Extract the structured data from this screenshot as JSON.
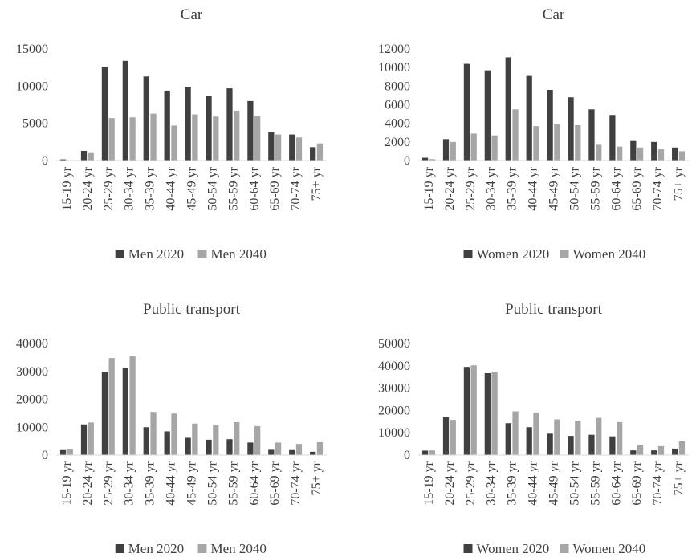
{
  "colors": {
    "series_2020": "#404040",
    "series_2040": "#a6a6a6",
    "axis": "#d9d9d9",
    "text": "#404040"
  },
  "chart_data": [
    {
      "type": "bar",
      "title": "Car",
      "categories": [
        "15-19 yr",
        "20-24 yr",
        "25-29 yr",
        "30-34 yr",
        "35-39 yr",
        "40-44 yr",
        "45-49 yr",
        "50-54 yr",
        "55-59 yr",
        "60-64 yr",
        "65-69 yr",
        "70-74 yr",
        "75+ yr"
      ],
      "series": [
        {
          "name": "Men 2020",
          "values": [
            150,
            1300,
            12600,
            13400,
            11300,
            9400,
            9900,
            8700,
            9700,
            8000,
            3800,
            3500,
            1800
          ]
        },
        {
          "name": "Men 2040",
          "values": [
            50,
            1000,
            5700,
            5800,
            6300,
            4700,
            6200,
            5900,
            6700,
            6000,
            3500,
            3100,
            2300
          ]
        }
      ],
      "ylim": [
        0,
        15000
      ],
      "yticks": [
        "0",
        "5000",
        "10000",
        "15000"
      ],
      "legend": "bottom"
    },
    {
      "type": "bar",
      "title": "Car",
      "categories": [
        "15-19 yr",
        "20-24 yr",
        "25-29 yr",
        "30-34 yr",
        "35-39 yr",
        "40-44 yr",
        "45-49 yr",
        "50-54 yr",
        "55-59 yr",
        "60-64 yr",
        "65-69 yr",
        "70-74 yr",
        "75+ yr"
      ],
      "series": [
        {
          "name": "Women 2020",
          "values": [
            300,
            2300,
            10400,
            9700,
            11100,
            9100,
            7600,
            6800,
            5500,
            4900,
            2100,
            2000,
            1400
          ]
        },
        {
          "name": "Women 2040",
          "values": [
            150,
            2000,
            2900,
            2700,
            5500,
            3700,
            3900,
            3800,
            1700,
            1500,
            1400,
            1200,
            1000
          ]
        }
      ],
      "ylim": [
        0,
        12000
      ],
      "yticks": [
        "0",
        "2000",
        "4000",
        "6000",
        "8000",
        "10000",
        "12000"
      ],
      "legend": "bottom"
    },
    {
      "type": "bar",
      "title": "Public transport",
      "categories": [
        "15-19 yr",
        "20-24 yr",
        "25-29 yr",
        "30-34 yr",
        "35-39 yr",
        "40-44 yr",
        "45-49 yr",
        "50-54 yr",
        "55-59 yr",
        "60-64 yr",
        "65-69 yr",
        "70-74 yr",
        "75+ yr"
      ],
      "series": [
        {
          "name": "Men 2020",
          "values": [
            1800,
            11000,
            29800,
            31300,
            10000,
            8500,
            6200,
            5500,
            5700,
            4500,
            1900,
            1800,
            1200
          ]
        },
        {
          "name": "Men 2040",
          "values": [
            2000,
            11700,
            34800,
            35400,
            15500,
            14900,
            11300,
            10800,
            11800,
            10400,
            4500,
            4000,
            4600
          ]
        }
      ],
      "ylim": [
        0,
        40000
      ],
      "yticks": [
        "0",
        "10000",
        "20000",
        "30000",
        "40000"
      ],
      "legend": "bottom"
    },
    {
      "type": "bar",
      "title": "Public transport",
      "categories": [
        "15-19 yr",
        "20-24 yr",
        "25-29 yr",
        "30-34 yr",
        "35-39 yr",
        "40-44 yr",
        "45-49 yr",
        "50-54 yr",
        "55-59 yr",
        "60-64 yr",
        "65-69 yr",
        "70-74 yr",
        "75+ yr"
      ],
      "series": [
        {
          "name": "Women 2020",
          "values": [
            2000,
            17000,
            39500,
            36700,
            14300,
            12500,
            9600,
            8600,
            9100,
            8400,
            2100,
            2100,
            2900
          ]
        },
        {
          "name": "Women 2040",
          "values": [
            2100,
            15800,
            40200,
            37200,
            19600,
            19100,
            16000,
            15400,
            16700,
            14800,
            4600,
            4000,
            6200
          ]
        }
      ],
      "ylim": [
        0,
        50000
      ],
      "yticks": [
        "0",
        "10000",
        "20000",
        "30000",
        "40000",
        "50000"
      ],
      "legend": "bottom"
    }
  ]
}
